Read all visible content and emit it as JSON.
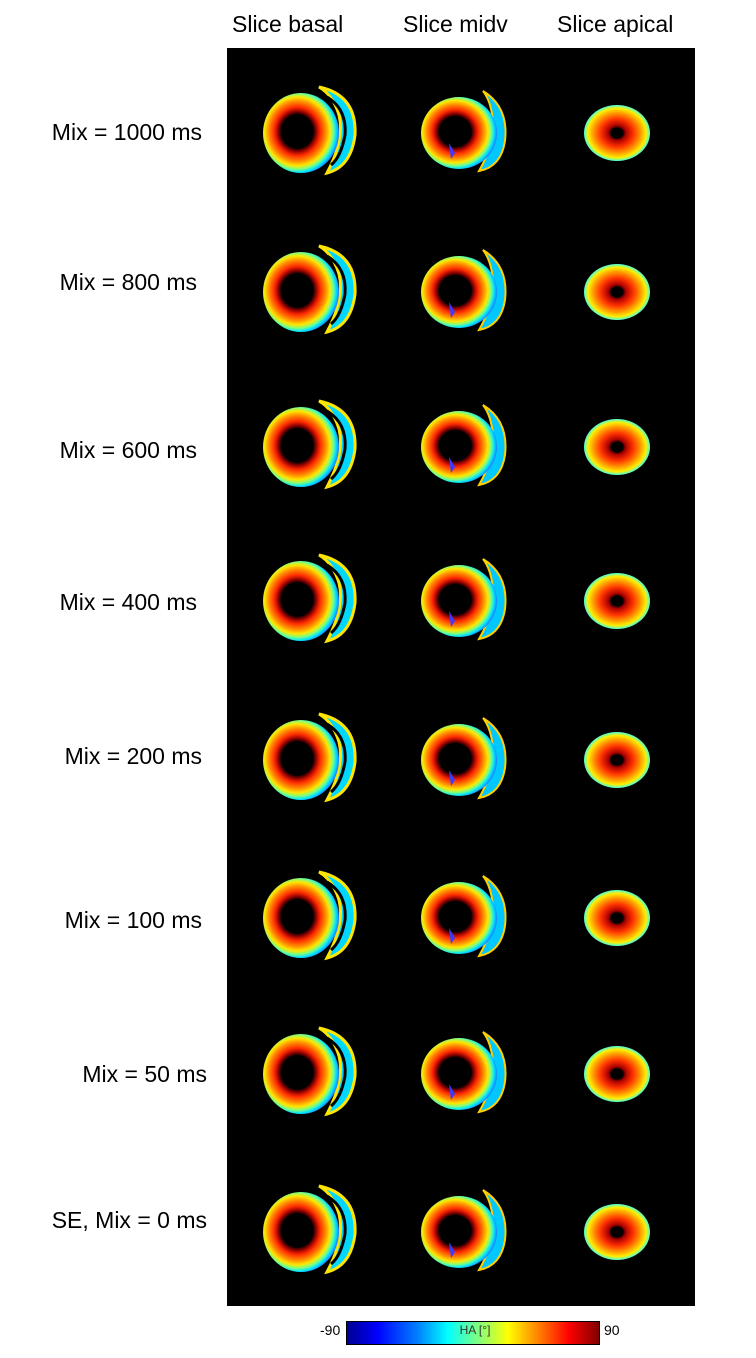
{
  "columns": [
    "Slice basal",
    "Slice midv",
    "Slice apical"
  ],
  "rows": [
    "Mix = 1000 ms",
    "Mix = 800 ms",
    "Mix = 600 ms",
    "Mix = 400 ms",
    "Mix = 200 ms",
    "Mix = 100 ms",
    "Mix = 50 ms",
    "SE, Mix = 0 ms"
  ],
  "colorbar": {
    "min": "-90",
    "max": "90",
    "label": "HA [°]"
  }
}
